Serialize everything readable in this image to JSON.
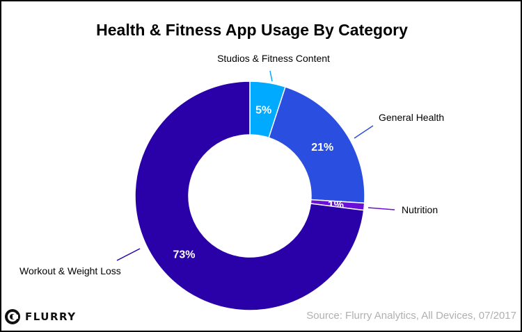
{
  "chart_data": {
    "type": "pie",
    "variant": "donut",
    "title": "Health & Fitness App Usage By Category",
    "slices": [
      {
        "name": "Studios & Fitness Content",
        "value": 5,
        "label": "5%",
        "color": "#00aaff"
      },
      {
        "name": "General Health",
        "value": 21,
        "label": "21%",
        "color": "#2a4fe0"
      },
      {
        "name": "Nutrition",
        "value": 1,
        "label": "1%",
        "color": "#6a0fd8"
      },
      {
        "name": "Workout & Weight Loss",
        "value": 73,
        "label": "73%",
        "color": "#2a00a8"
      }
    ],
    "legend": "callout-labels",
    "source": "Source: Flurry Analytics, All Devices, 07/2017"
  },
  "branding": {
    "logo_text": "FLURRY",
    "logo_icon": "flurry-logo-icon"
  }
}
